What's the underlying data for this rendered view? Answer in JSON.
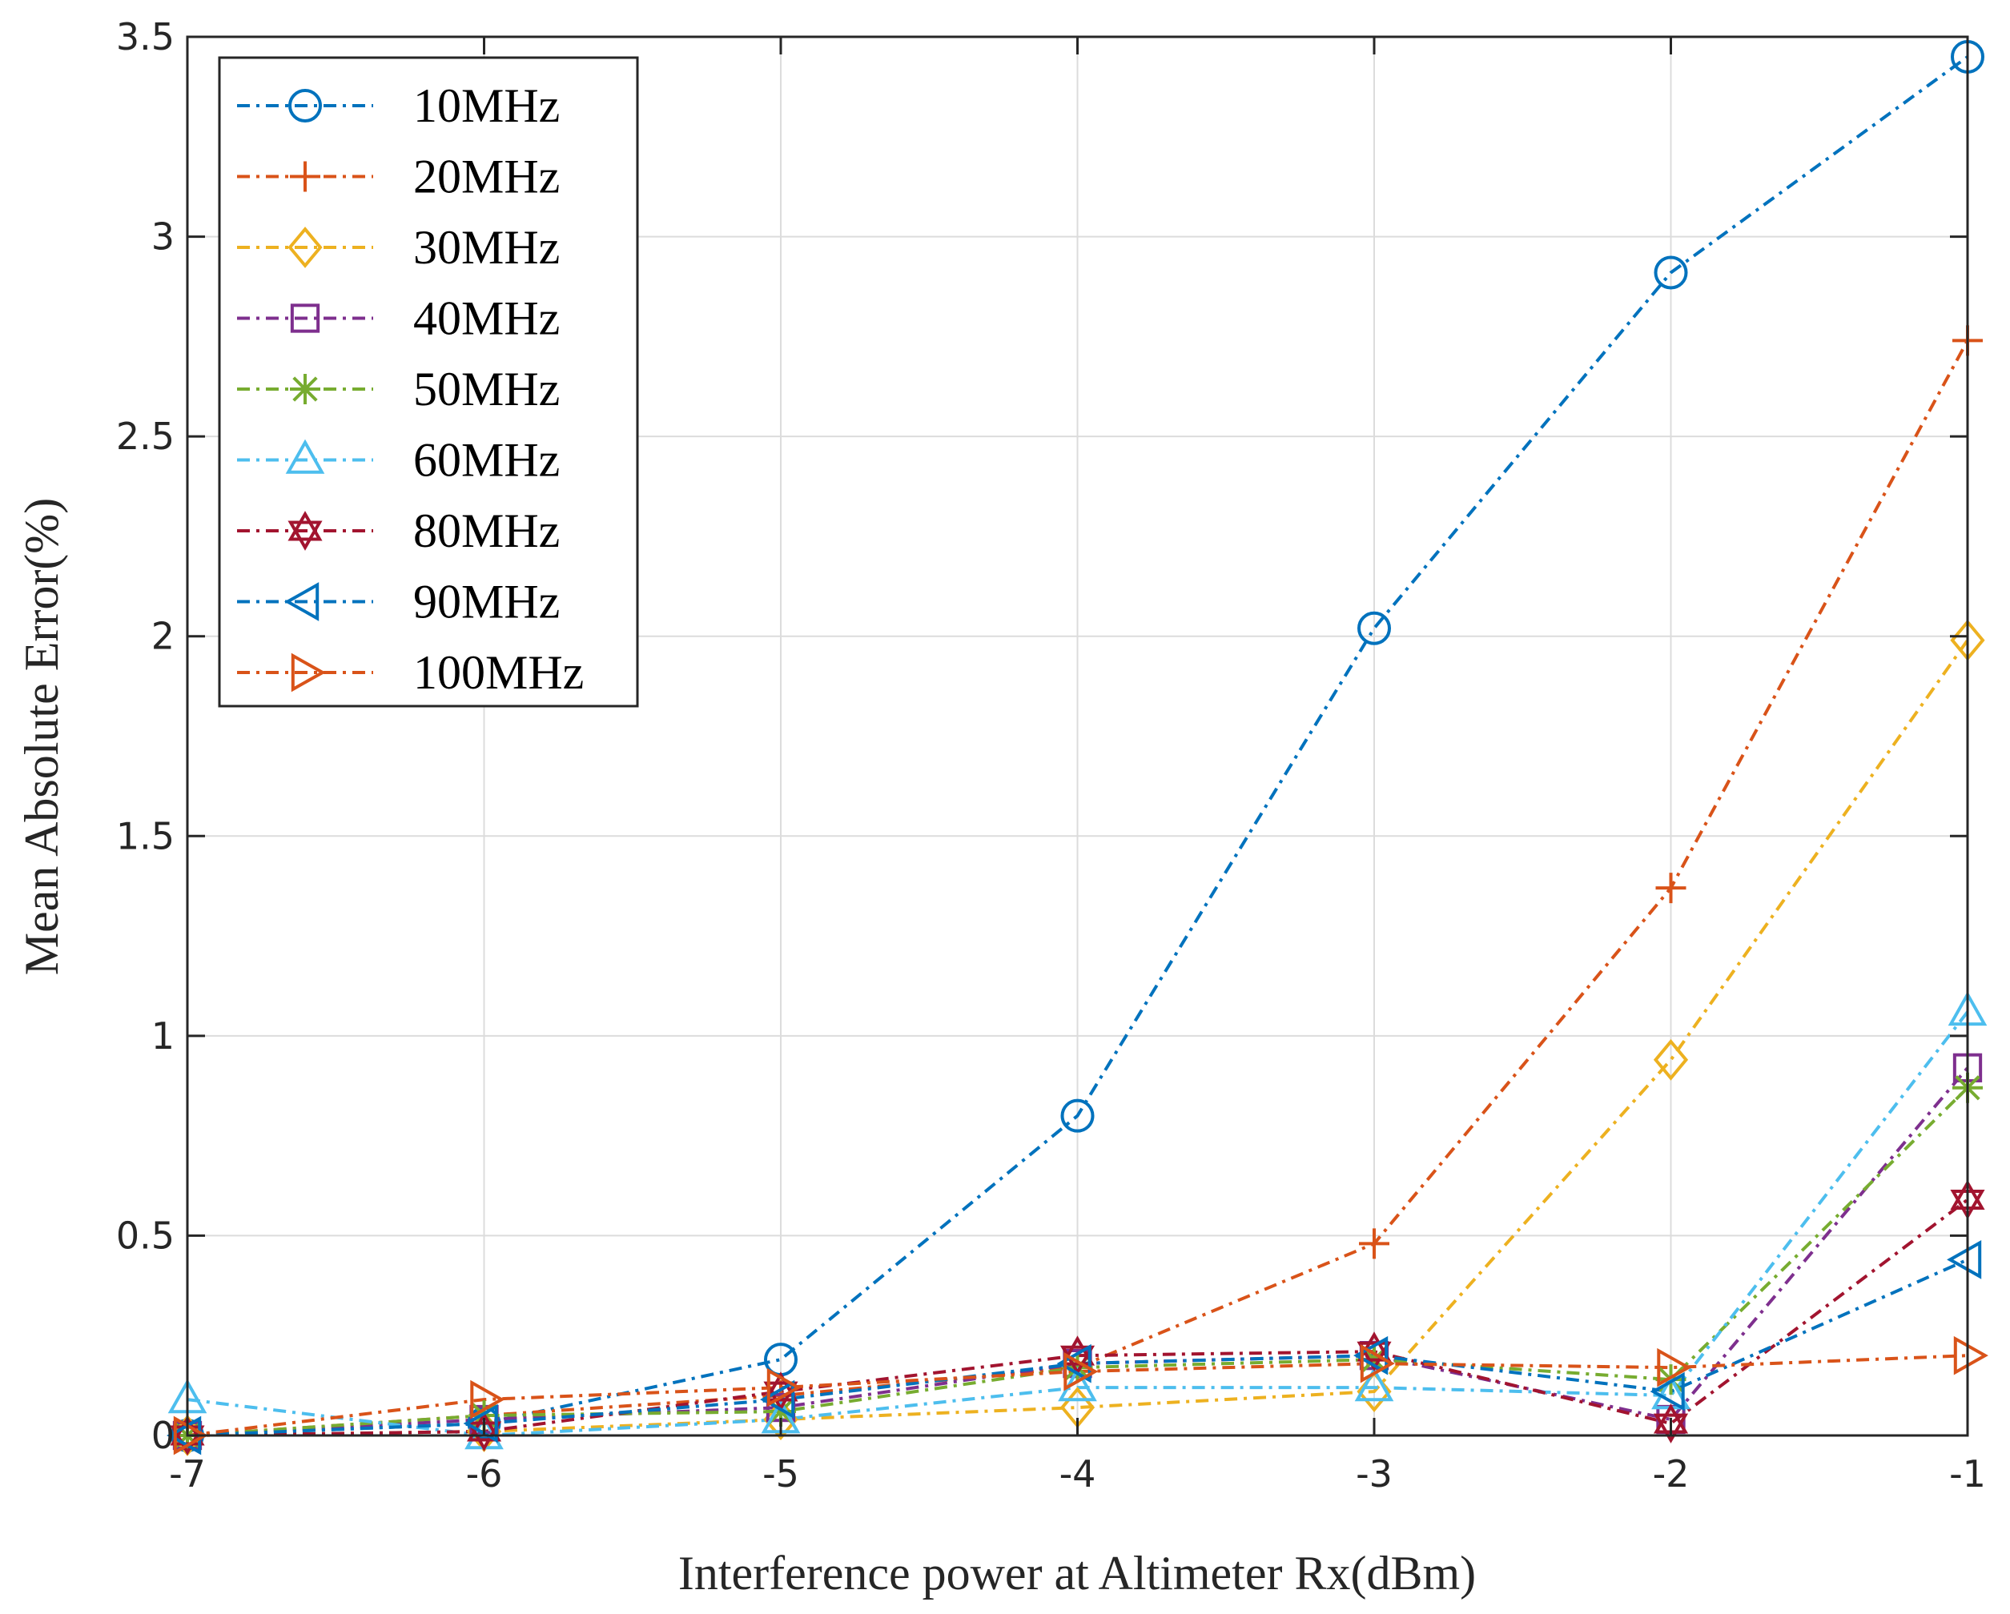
{
  "chart_data": {
    "type": "line",
    "title": "",
    "xlabel": "Interference power at Altimeter Rx(dBm)",
    "ylabel": "Mean Absolute Error(%)",
    "xlim": [
      -7,
      -1
    ],
    "ylim": [
      0,
      3.5
    ],
    "x": [
      -7,
      -6,
      -5,
      -4,
      -3,
      -2,
      -1
    ],
    "x_tick_labels": [
      "-7",
      "-6",
      "-5",
      "-4",
      "-3",
      "-2",
      "-1"
    ],
    "y_tick_labels": [
      "0",
      "0.5",
      "1",
      "1.5",
      "2",
      "2.5",
      "3",
      "3.5"
    ],
    "grid": true,
    "legend_position": "top-left",
    "line_style": "dash-dot",
    "series": [
      {
        "name": "10MHz",
        "color": "#0072BD",
        "marker": "circle",
        "values": [
          0.0,
          0.03,
          0.19,
          0.8,
          2.02,
          2.91,
          3.45
        ]
      },
      {
        "name": "20MHz",
        "color": "#D95319",
        "marker": "plus",
        "values": [
          0.0,
          0.05,
          0.1,
          0.17,
          0.48,
          1.37,
          2.74
        ]
      },
      {
        "name": "30MHz",
        "color": "#EDB120",
        "marker": "diamond",
        "values": [
          0.0,
          0.01,
          0.04,
          0.07,
          0.11,
          0.94,
          1.99
        ]
      },
      {
        "name": "40MHz",
        "color": "#7E2F8E",
        "marker": "square",
        "values": [
          0.0,
          0.04,
          0.07,
          0.18,
          0.2,
          0.04,
          0.92
        ]
      },
      {
        "name": "50MHz",
        "color": "#77AC30",
        "marker": "asterisk",
        "values": [
          0.0,
          0.05,
          0.06,
          0.17,
          0.19,
          0.14,
          0.87
        ]
      },
      {
        "name": "60MHz",
        "color": "#4DBEEE",
        "marker": "triangle-up",
        "values": [
          0.09,
          0.0,
          0.04,
          0.12,
          0.12,
          0.1,
          1.06
        ]
      },
      {
        "name": "80MHz",
        "color": "#A2142F",
        "marker": "hexagram",
        "values": [
          0.0,
          0.01,
          0.11,
          0.2,
          0.21,
          0.03,
          0.59
        ]
      },
      {
        "name": "90MHz",
        "color": "#0072BD",
        "marker": "triangle-left",
        "values": [
          0.0,
          0.03,
          0.09,
          0.18,
          0.2,
          0.11,
          0.44
        ]
      },
      {
        "name": "100MHz",
        "color": "#D95319",
        "marker": "triangle-right",
        "values": [
          0.0,
          0.09,
          0.12,
          0.16,
          0.18,
          0.17,
          0.2
        ]
      }
    ]
  }
}
